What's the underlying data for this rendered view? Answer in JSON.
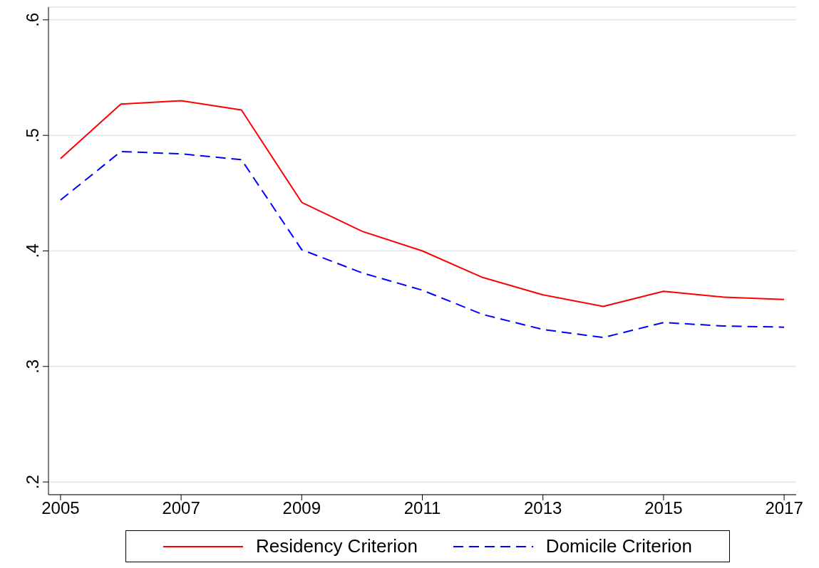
{
  "chart_data": {
    "type": "line",
    "x": [
      2005,
      2006,
      2007,
      2008,
      2009,
      2010,
      2011,
      2012,
      2013,
      2014,
      2015,
      2016,
      2017
    ],
    "series": [
      {
        "name": "Residency Criterion",
        "color": "#ff0000",
        "line_style": "solid",
        "values": [
          0.48,
          0.527,
          0.53,
          0.522,
          0.442,
          0.417,
          0.4,
          0.377,
          0.362,
          0.352,
          0.365,
          0.36,
          0.358
        ]
      },
      {
        "name": "Domicile Criterion",
        "color": "#0000ff",
        "line_style": "dashed",
        "values": [
          0.444,
          0.486,
          0.484,
          0.479,
          0.401,
          0.381,
          0.366,
          0.345,
          0.332,
          0.325,
          0.338,
          0.335,
          0.334
        ]
      }
    ],
    "xlim": [
      2004.8,
      2017.2
    ],
    "xticks": [
      2005,
      2007,
      2009,
      2011,
      2013,
      2015,
      2017
    ],
    "ylim": [
      0.189,
      0.611
    ],
    "yticks": [
      {
        "value": 0.2,
        "label": ".2"
      },
      {
        "value": 0.3,
        "label": ".3"
      },
      {
        "value": 0.4,
        "label": ".4"
      },
      {
        "value": 0.5,
        "label": ".5"
      },
      {
        "value": 0.6,
        "label": ".6"
      }
    ],
    "grid": "y",
    "legend": "bottom",
    "marker": "none"
  }
}
